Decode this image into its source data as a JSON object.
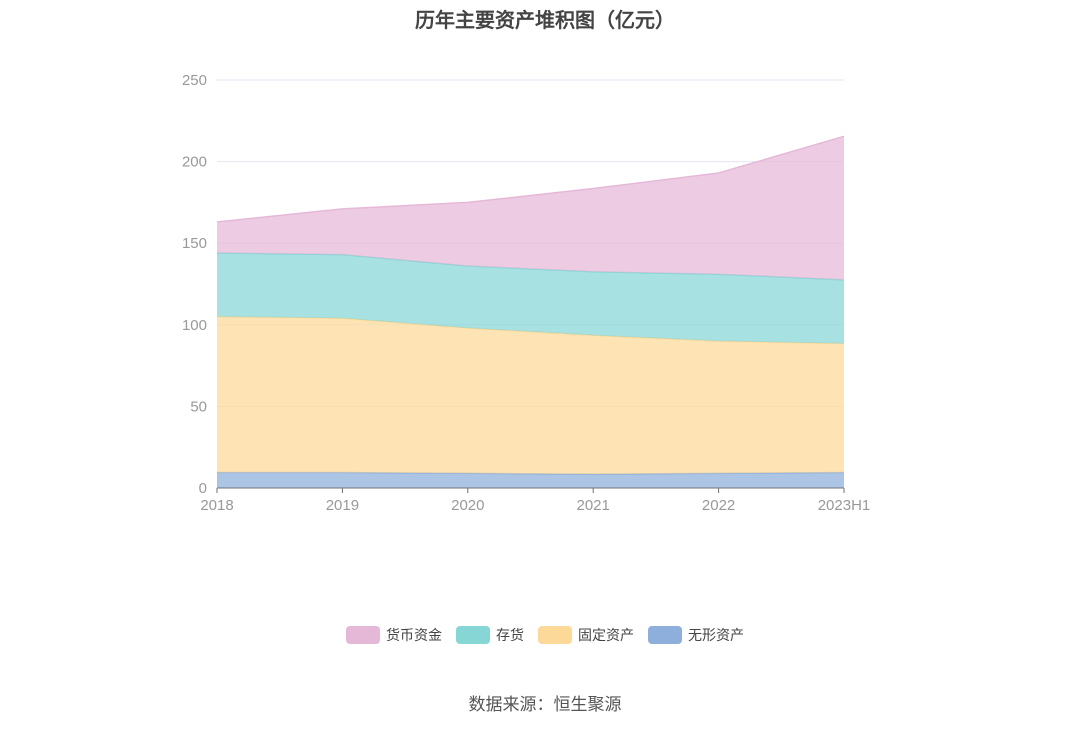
{
  "chart_data": {
    "type": "area",
    "stacked": true,
    "title": "历年主要资产堆积图（亿元）",
    "categories": [
      "2018",
      "2019",
      "2020",
      "2021",
      "2022",
      "2023H1"
    ],
    "ylim": [
      0,
      250
    ],
    "yticks": [
      0,
      50,
      100,
      150,
      200,
      250
    ],
    "grid": true,
    "legend_position": "bottom",
    "series": [
      {
        "name": "无形资产",
        "color": "#8eaedb",
        "values": [
          9.5,
          9.5,
          9,
          8.5,
          9,
          9.5
        ]
      },
      {
        "name": "固定资产",
        "color": "#fdd999",
        "values": [
          95.5,
          94.5,
          89,
          85,
          81,
          79
        ]
      },
      {
        "name": "存货",
        "color": "#86d6d6",
        "values": [
          39,
          39,
          38,
          39,
          41,
          39
        ]
      },
      {
        "name": "货币资金",
        "color": "#e6b8d8",
        "values": [
          19,
          28,
          39,
          51,
          62,
          88
        ]
      }
    ],
    "legend_order": [
      "货币资金",
      "存货",
      "固定资产",
      "无形资产"
    ]
  },
  "source_note": "数据来源：恒生聚源"
}
